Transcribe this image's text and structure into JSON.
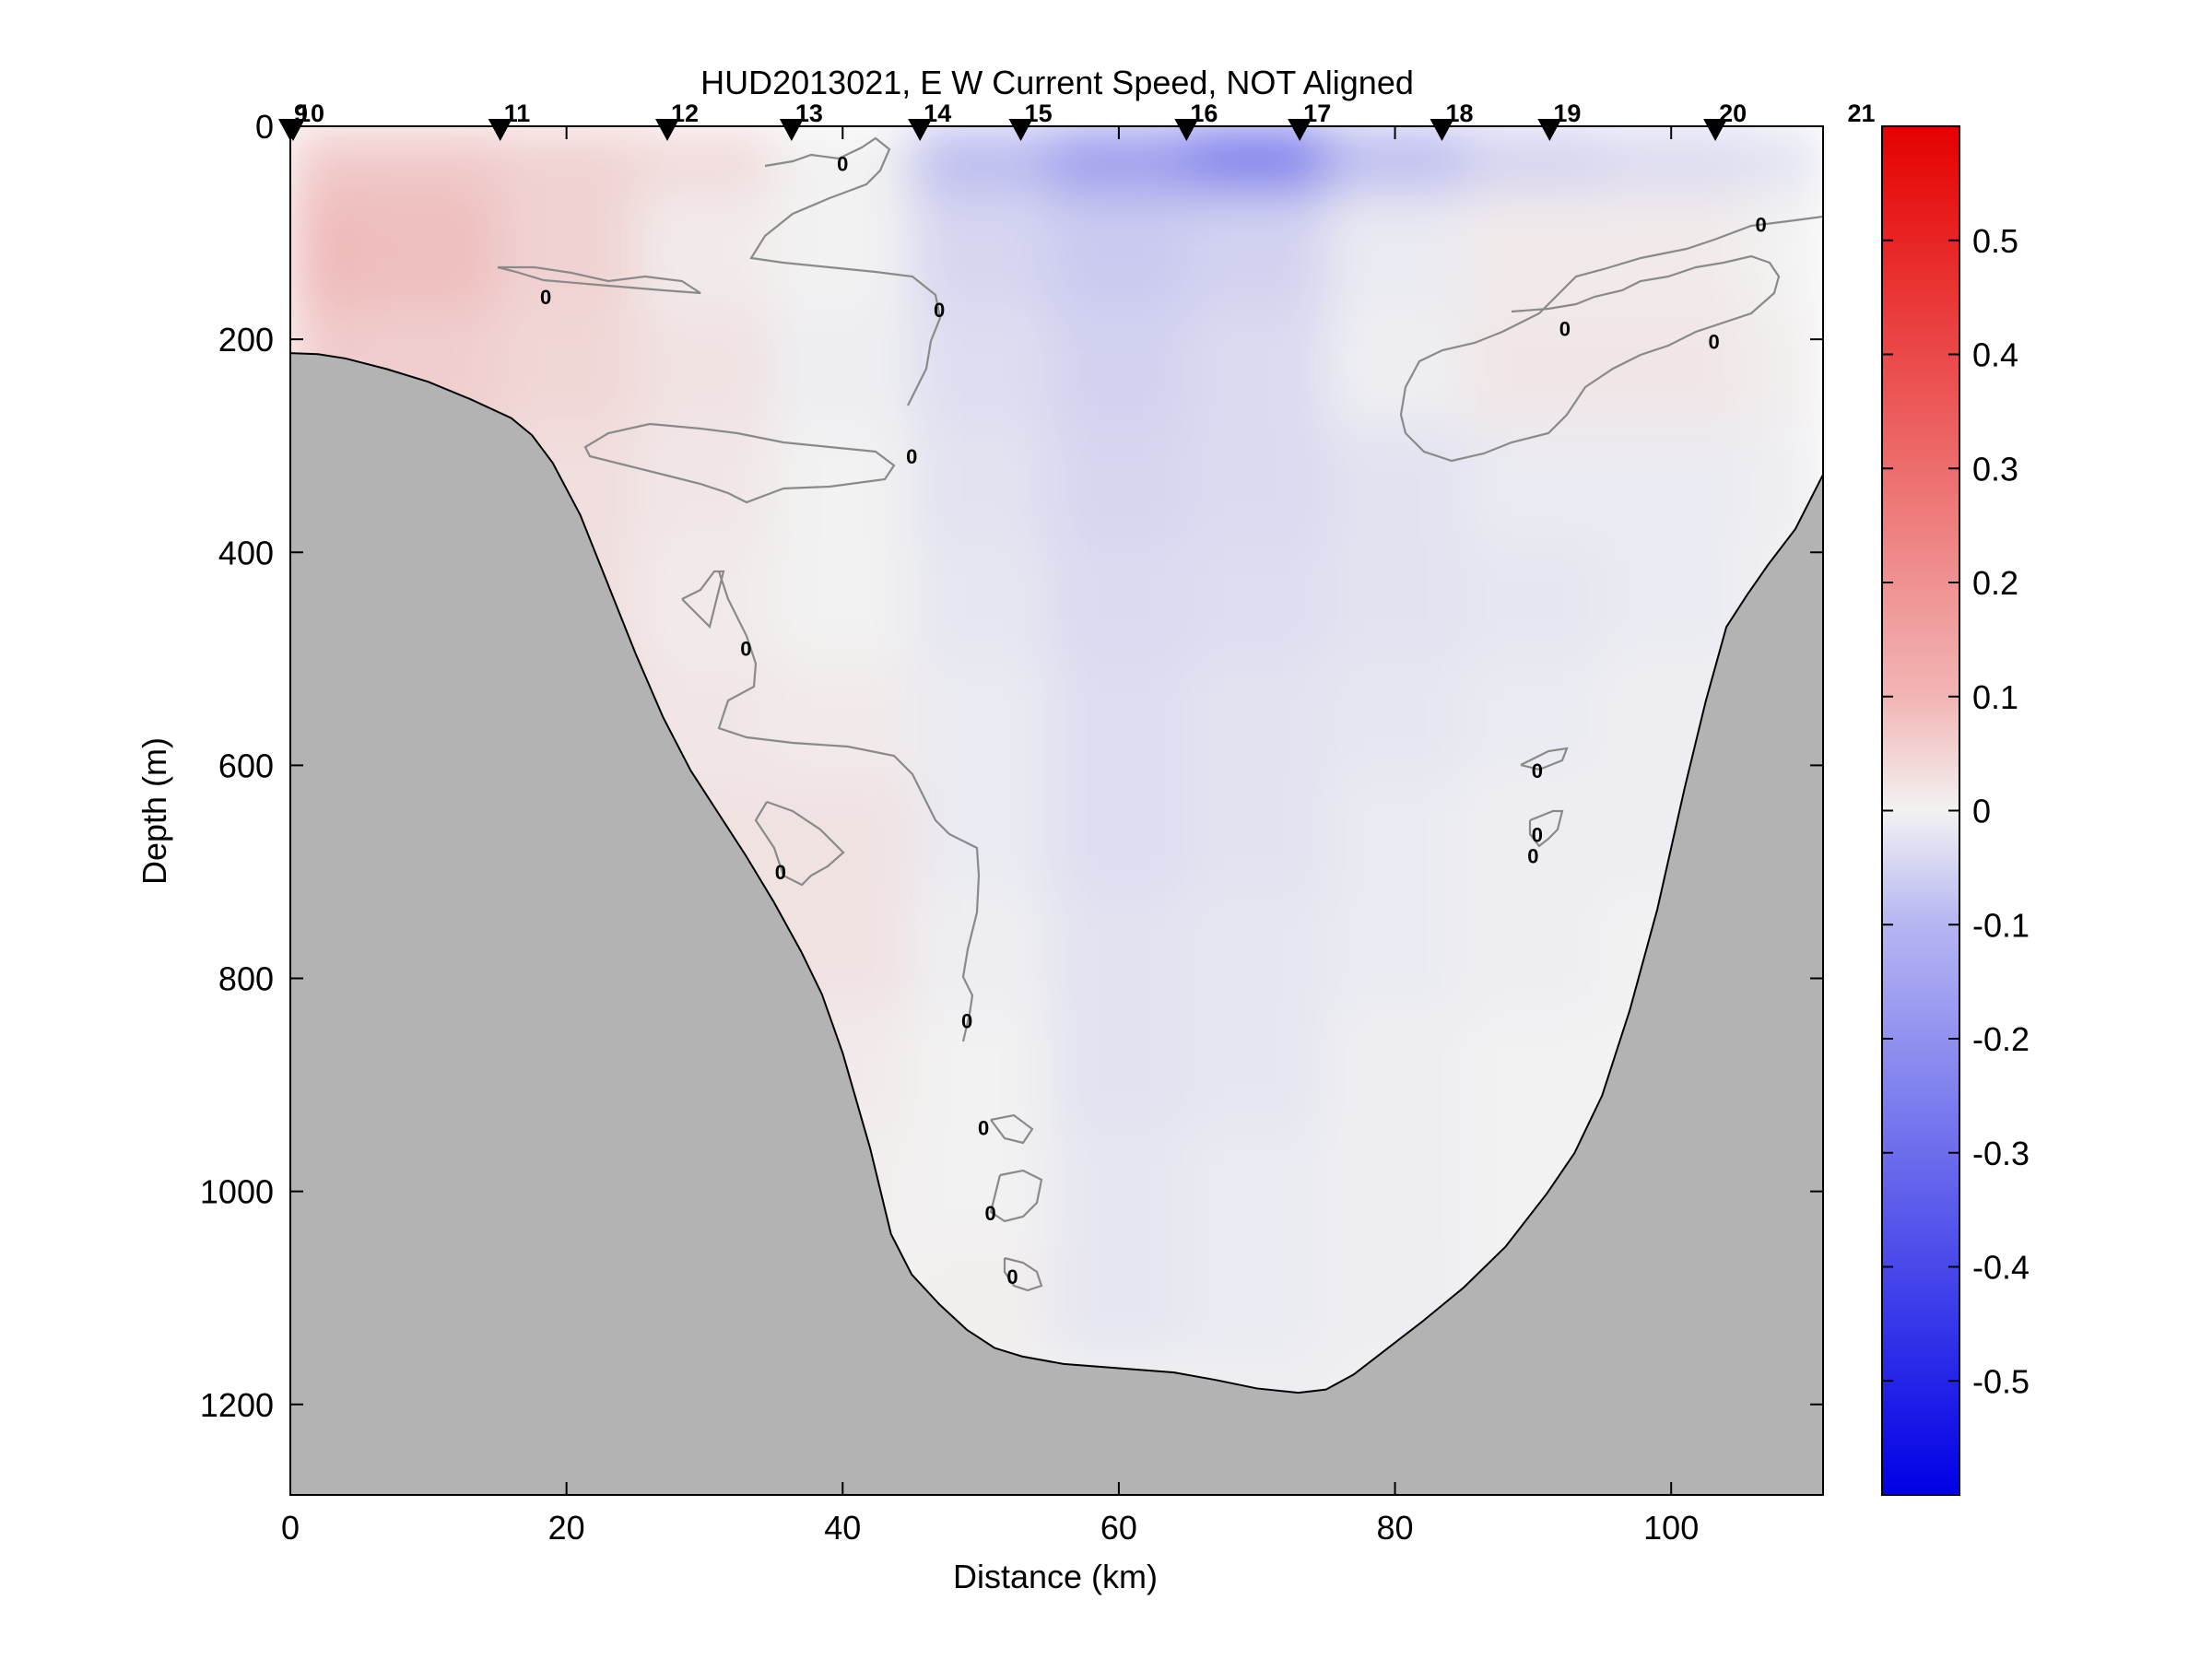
{
  "chart_data": {
    "type": "heatmap",
    "title": "HUD2013021, E W Current Speed, NOT Aligned",
    "xlabel": "Distance (km)",
    "ylabel": "Depth (m)",
    "xlim": [
      0,
      111
    ],
    "ylim": [
      1285,
      0
    ],
    "xticks": [
      "0",
      "20",
      "40",
      "60",
      "80",
      "100"
    ],
    "yticks": [
      "0",
      "200",
      "400",
      "600",
      "800",
      "1000",
      "1200"
    ],
    "colorbar": {
      "range": [
        -0.6,
        0.6
      ],
      "ticks": [
        "0.5",
        "0.4",
        "0.3",
        "0.2",
        "0.1",
        "0",
        "-0.1",
        "-0.2",
        "-0.3",
        "-0.4",
        "-0.5"
      ],
      "colors": {
        "negative": "#0000e6",
        "zero": "#f2f2f2",
        "positive": "#e60000"
      }
    },
    "stations": [
      {
        "label": "9",
        "x": 0.0
      },
      {
        "label": "10",
        "x": 0.2
      },
      {
        "label": "11",
        "x": 15.2
      },
      {
        "label": "12",
        "x": 27.3
      },
      {
        "label": "13",
        "x": 36.3
      },
      {
        "label": "14",
        "x": 45.6
      },
      {
        "label": "15",
        "x": 52.9
      },
      {
        "label": "16",
        "x": 64.9
      },
      {
        "label": "17",
        "x": 73.1
      },
      {
        "label": "18",
        "x": 83.4
      },
      {
        "label": "19",
        "x": 91.2
      },
      {
        "label": "20",
        "x": 103.2
      },
      {
        "label": "21",
        "x": 112.5
      }
    ],
    "contour_labels": [
      {
        "text": "0",
        "x": 40.0,
        "y": 35
      },
      {
        "text": "0",
        "x": 18.5,
        "y": 160
      },
      {
        "text": "0",
        "x": 47.0,
        "y": 172
      },
      {
        "text": "0",
        "x": 106.5,
        "y": 92
      },
      {
        "text": "0",
        "x": 92.3,
        "y": 190
      },
      {
        "text": "0",
        "x": 103.1,
        "y": 202
      },
      {
        "text": "0",
        "x": 45.0,
        "y": 310
      },
      {
        "text": "0",
        "x": 33.0,
        "y": 490
      },
      {
        "text": "0",
        "x": 90.3,
        "y": 605
      },
      {
        "text": "0",
        "x": 90.3,
        "y": 665
      },
      {
        "text": "0",
        "x": 90.0,
        "y": 685
      },
      {
        "text": "0",
        "x": 35.5,
        "y": 700
      },
      {
        "text": "0",
        "x": 49.0,
        "y": 840
      },
      {
        "text": "0",
        "x": 50.2,
        "y": 940
      },
      {
        "text": "0",
        "x": 50.7,
        "y": 1020
      },
      {
        "text": "0",
        "x": 52.3,
        "y": 1080
      }
    ],
    "bathymetry": [
      [
        0,
        213
      ],
      [
        2,
        214
      ],
      [
        4,
        218
      ],
      [
        7,
        228
      ],
      [
        10,
        240
      ],
      [
        13,
        256
      ],
      [
        16,
        274
      ],
      [
        17.5,
        290
      ],
      [
        19,
        316
      ],
      [
        21,
        365
      ],
      [
        23,
        430
      ],
      [
        25,
        495
      ],
      [
        27,
        555
      ],
      [
        29,
        605
      ],
      [
        31,
        645
      ],
      [
        33,
        685
      ],
      [
        35,
        728
      ],
      [
        37,
        775
      ],
      [
        38.5,
        815
      ],
      [
        40,
        870
      ],
      [
        42,
        960
      ],
      [
        43.5,
        1040
      ],
      [
        45,
        1078
      ],
      [
        47,
        1106
      ],
      [
        49,
        1130
      ],
      [
        51,
        1147
      ],
      [
        53,
        1155
      ],
      [
        56,
        1162
      ],
      [
        60,
        1166
      ],
      [
        64,
        1170
      ],
      [
        67,
        1177
      ],
      [
        70,
        1185
      ],
      [
        73,
        1189
      ],
      [
        75,
        1186
      ],
      [
        77,
        1172
      ],
      [
        79,
        1152
      ],
      [
        82,
        1122
      ],
      [
        85,
        1090
      ],
      [
        88,
        1052
      ],
      [
        91,
        1002
      ],
      [
        93,
        964
      ],
      [
        95,
        910
      ],
      [
        97,
        830
      ],
      [
        99,
        735
      ],
      [
        101,
        620
      ],
      [
        102.5,
        540
      ],
      [
        104,
        470
      ],
      [
        105.5,
        440
      ],
      [
        107,
        412
      ],
      [
        109,
        378
      ],
      [
        111,
        327
      ]
    ],
    "velocity_field": [
      {
        "x": 0,
        "values": [
          0.1,
          0.14,
          0.1,
          0.08,
          0.07,
          0.06
        ]
      },
      {
        "x": 10,
        "values": [
          0.1,
          0.13,
          0.09,
          0.07,
          0.07,
          0.08
        ]
      },
      {
        "x": 20,
        "values": [
          0.08,
          0.08,
          0.07,
          0.05,
          0.05,
          0.07,
          0.06,
          0.05,
          0.04
        ]
      },
      {
        "x": 30,
        "values": [
          0.06,
          0.02,
          0.04,
          0.03,
          0.02,
          0.03,
          0.04,
          0.04,
          0.03,
          0.02
        ]
      },
      {
        "x": 40,
        "values": [
          0.0,
          0.0,
          -0.01,
          0.0,
          0.0,
          0.02,
          0.04,
          0.04,
          0.02,
          0.01,
          0.0
        ]
      },
      {
        "x": 50,
        "values": [
          -0.14,
          -0.07,
          -0.05,
          -0.04,
          -0.03,
          -0.02,
          -0.02,
          -0.01,
          0.0,
          0.0,
          0.01
        ]
      },
      {
        "x": 60,
        "values": [
          -0.22,
          -0.1,
          -0.08,
          -0.07,
          -0.06,
          -0.05,
          -0.05,
          -0.04,
          -0.04,
          -0.03,
          -0.03
        ]
      },
      {
        "x": 70,
        "values": [
          -0.3,
          -0.08,
          -0.06,
          -0.06,
          -0.05,
          -0.04,
          -0.04,
          -0.03,
          -0.03,
          -0.02,
          -0.02,
          -0.01
        ]
      },
      {
        "x": 80,
        "values": [
          -0.14,
          -0.02,
          -0.01,
          -0.04,
          -0.04,
          -0.03,
          -0.02,
          -0.02,
          -0.01,
          -0.01,
          -0.01
        ]
      },
      {
        "x": 90,
        "values": [
          -0.08,
          0.02,
          0.03,
          -0.02,
          -0.03,
          -0.02,
          -0.01,
          -0.01,
          0.0,
          0.0
        ]
      },
      {
        "x": 100,
        "values": [
          -0.06,
          0.02,
          0.03,
          -0.02,
          -0.02,
          -0.01,
          -0.01,
          0.0
        ]
      },
      {
        "x": 111,
        "values": [
          -0.04,
          0.0,
          0.01,
          -0.01
        ]
      }
    ]
  }
}
